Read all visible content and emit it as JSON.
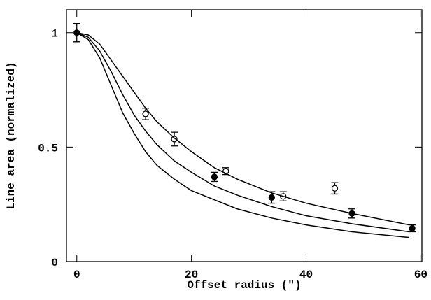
{
  "chart_data": {
    "type": "scatter",
    "xlabel": "Offset radius (″)",
    "ylabel": "Line area (normalized)",
    "xlim": [
      -1.8,
      60.2
    ],
    "ylim": [
      0,
      1.1
    ],
    "xticks": [
      0,
      20,
      40,
      60
    ],
    "yticks": [
      0,
      0.5,
      1
    ],
    "series": [
      {
        "style": "filled",
        "color": "#000000",
        "x": [
          0,
          24,
          34,
          48,
          58.5
        ],
        "values": [
          1.0,
          0.37,
          0.28,
          0.21,
          0.145
        ],
        "errors": [
          0.04,
          0.02,
          0.025,
          0.02,
          0.015
        ]
      },
      {
        "style": "open",
        "color": "#000000",
        "x": [
          12,
          17,
          26,
          36,
          45
        ],
        "values": [
          0.645,
          0.535,
          0.395,
          0.285,
          0.32
        ],
        "errors": [
          0.025,
          0.03,
          0.015,
          0.02,
          0.025
        ]
      },
      {
        "style": "line",
        "color": "#000000",
        "x": [
          0,
          2,
          4,
          6,
          8,
          10,
          12,
          14,
          17,
          20,
          24,
          28,
          34,
          40,
          48,
          58
        ],
        "values": [
          1,
          0.99,
          0.95,
          0.88,
          0.81,
          0.74,
          0.67,
          0.61,
          0.54,
          0.48,
          0.41,
          0.36,
          0.3,
          0.255,
          0.21,
          0.16
        ]
      },
      {
        "style": "line",
        "color": "#000000",
        "x": [
          0,
          2,
          4,
          6,
          8,
          10,
          12,
          14,
          17,
          20,
          24,
          28,
          34,
          40,
          48,
          58
        ],
        "values": [
          1,
          0.98,
          0.92,
          0.83,
          0.73,
          0.64,
          0.57,
          0.51,
          0.44,
          0.39,
          0.33,
          0.29,
          0.24,
          0.2,
          0.165,
          0.13
        ]
      },
      {
        "style": "line",
        "color": "#000000",
        "x": [
          0,
          2,
          4,
          6,
          8,
          10,
          12,
          14,
          17,
          20,
          24,
          28,
          34,
          40,
          48,
          58
        ],
        "values": [
          1,
          0.97,
          0.89,
          0.77,
          0.65,
          0.56,
          0.48,
          0.42,
          0.36,
          0.31,
          0.27,
          0.23,
          0.19,
          0.16,
          0.13,
          0.105
        ]
      }
    ]
  }
}
